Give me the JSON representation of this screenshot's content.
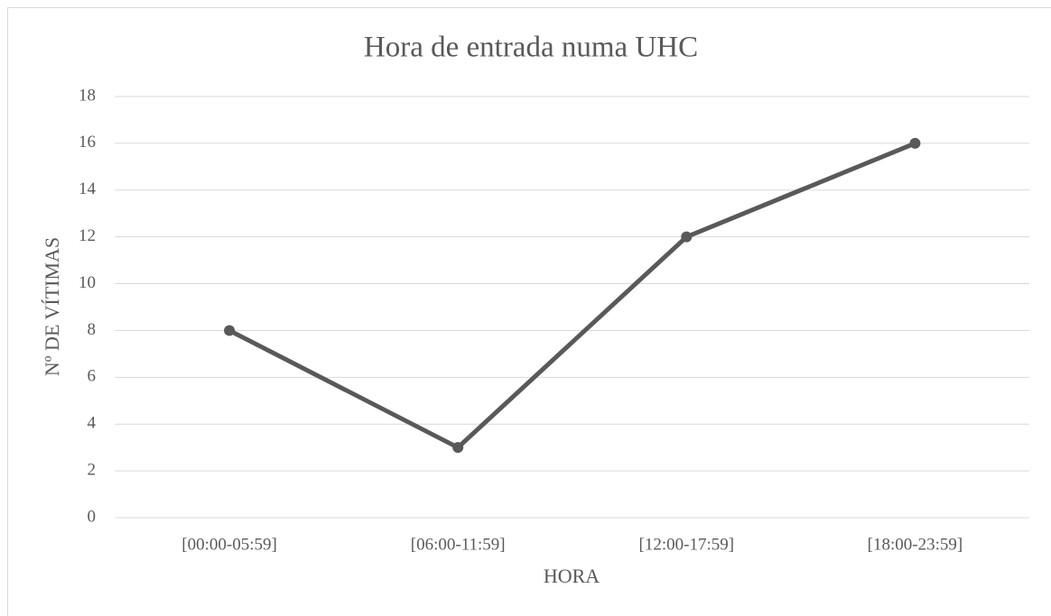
{
  "chart_data": {
    "type": "line",
    "title": "Hora de entrada numa UHC",
    "x_label": "HORA",
    "y_label": "Nº DE VÍTIMAS",
    "categories": [
      "[00:00-05:59]",
      "[06:00-11:59]",
      "[12:00-17:59]",
      "[18:00-23:59]"
    ],
    "values": [
      8,
      3,
      12,
      16
    ],
    "color": "#595959",
    "ylim": [
      0,
      18
    ],
    "yticks": [
      0,
      2,
      4,
      6,
      8,
      10,
      12,
      14,
      16,
      18
    ],
    "grid": true
  }
}
